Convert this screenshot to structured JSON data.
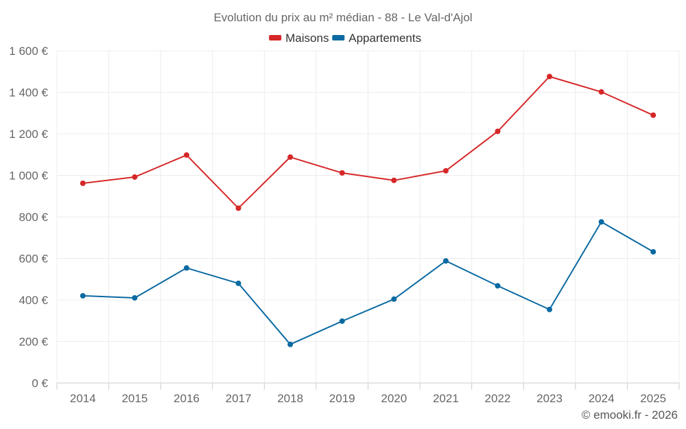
{
  "chart_data": {
    "type": "line",
    "title": "Evolution du prix au m² médian - 88 - Le Val-d'Ajol",
    "xlabel": "",
    "ylabel": "",
    "categories": [
      "2014",
      "2015",
      "2016",
      "2017",
      "2018",
      "2019",
      "2020",
      "2021",
      "2022",
      "2023",
      "2024",
      "2025"
    ],
    "ylim": [
      0,
      1600
    ],
    "yticks": [
      0,
      200,
      400,
      600,
      800,
      1000,
      1200,
      1400,
      1600
    ],
    "ytick_labels": [
      "0 €",
      "200 €",
      "400 €",
      "600 €",
      "800 €",
      "1 000 €",
      "1 200 €",
      "1 400 €",
      "1 600 €"
    ],
    "grid": true,
    "legend_position": "top-center",
    "series": [
      {
        "name": "Maisons",
        "color": "#d62728",
        "values": [
          962,
          992,
          1098,
          842,
          1088,
          1012,
          976,
          1022,
          1212,
          1476,
          1402,
          1290
        ]
      },
      {
        "name": "Appartements",
        "color": "#0b6aa2",
        "values": [
          420,
          410,
          554,
          480,
          186,
          298,
          404,
          588,
          468,
          354,
          776,
          632
        ]
      }
    ]
  },
  "footer": {
    "credit": "© emooki.fr - 2026"
  }
}
